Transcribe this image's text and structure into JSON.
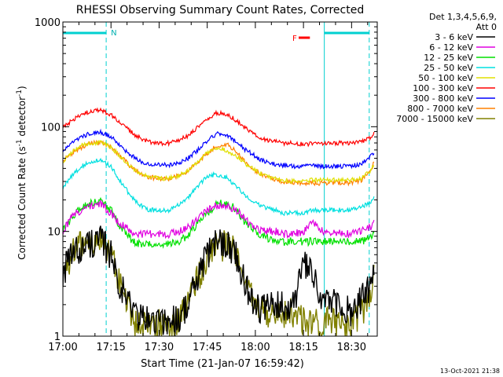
{
  "chart_data": {
    "type": "line",
    "title": "RHESSI Observing Summary Count Rates, Corrected",
    "xlabel": "Start Time (21-Jan-07 16:59:42)",
    "ylabel_parts": {
      "main": "Corrected Count Rate (s",
      "exp1": "-1",
      "mid": " detector",
      "exp2": "-1",
      "end": ")"
    },
    "x_unit": "minutes after 17:00",
    "xlim": [
      0,
      98
    ],
    "ylim": [
      1,
      1000
    ],
    "y_scale": "log",
    "x_ticks": [
      {
        "t": 0,
        "label": "17:00"
      },
      {
        "t": 15,
        "label": "17:15"
      },
      {
        "t": 30,
        "label": "17:30"
      },
      {
        "t": 45,
        "label": "17:45"
      },
      {
        "t": 60,
        "label": "18:00"
      },
      {
        "t": 75,
        "label": "18:15"
      },
      {
        "t": 90,
        "label": "18:30"
      }
    ],
    "y_ticks": [
      {
        "v": 1,
        "label": "1"
      },
      {
        "v": 10,
        "label": "10"
      },
      {
        "v": 100,
        "label": "100"
      },
      {
        "v": 1000,
        "label": "1000"
      }
    ],
    "legend_header": [
      "Det 1,3,4,5,6,9,",
      "Att 0"
    ],
    "legend_position": "right",
    "series": [
      {
        "name": "3 - 6 keV",
        "color": "#000000",
        "x": [
          0,
          3,
          6,
          9,
          12,
          15,
          18,
          21,
          24,
          27,
          30,
          33,
          36,
          39,
          42,
          45,
          48,
          51,
          54,
          57,
          60,
          63,
          66,
          69,
          72,
          75,
          78,
          81,
          84,
          87,
          90,
          93,
          96,
          97
        ],
        "values": [
          4,
          6,
          7,
          8,
          8,
          6,
          3,
          2,
          1.5,
          1.4,
          1.4,
          1.4,
          1.5,
          2,
          3.5,
          6,
          8,
          8,
          6,
          3,
          2,
          1.8,
          2,
          2,
          2,
          5,
          3.5,
          2.2,
          2,
          2,
          1.6,
          2.2,
          3,
          4
        ]
      },
      {
        "name": "6 - 12 keV",
        "color": "#e000e0",
        "x": [
          0,
          3,
          6,
          9,
          12,
          15,
          18,
          21,
          24,
          27,
          30,
          33,
          36,
          39,
          42,
          45,
          48,
          51,
          54,
          57,
          60,
          63,
          66,
          69,
          72,
          75,
          78,
          81,
          84,
          87,
          90,
          93,
          96,
          97
        ],
        "values": [
          10,
          14,
          16,
          18,
          18,
          15,
          12,
          10,
          9.5,
          9.5,
          9.5,
          9.5,
          10,
          11,
          13,
          16,
          18,
          18,
          16,
          13,
          11,
          10,
          10,
          9.5,
          9.5,
          10,
          12,
          10,
          9.5,
          9.5,
          9.5,
          10,
          11,
          12
        ]
      },
      {
        "name": "12 - 25 keV",
        "color": "#00e000",
        "x": [
          0,
          3,
          6,
          9,
          12,
          15,
          18,
          21,
          24,
          27,
          30,
          33,
          36,
          39,
          42,
          45,
          48,
          51,
          54,
          57,
          60,
          63,
          66,
          69,
          72,
          75,
          78,
          81,
          84,
          87,
          90,
          93,
          96,
          97
        ],
        "values": [
          10,
          14,
          17,
          19,
          19,
          16,
          11,
          8.5,
          7.5,
          7.5,
          7.5,
          7.5,
          8,
          9,
          12,
          15,
          18,
          19,
          16,
          12,
          10,
          9,
          8,
          8,
          8,
          8,
          8,
          8,
          8,
          8,
          8,
          8,
          9,
          10
        ]
      },
      {
        "name": "25 - 50 keV",
        "color": "#00e0e0",
        "x": [
          0,
          3,
          6,
          9,
          12,
          15,
          18,
          21,
          24,
          27,
          30,
          33,
          36,
          39,
          42,
          45,
          48,
          51,
          54,
          57,
          60,
          63,
          66,
          69,
          72,
          75,
          78,
          81,
          84,
          87,
          90,
          93,
          96,
          97
        ],
        "values": [
          26,
          35,
          42,
          47,
          47,
          42,
          30,
          22,
          18,
          16,
          16,
          16,
          18,
          21,
          27,
          34,
          35,
          33,
          27,
          22,
          19,
          17,
          16,
          15,
          15,
          15,
          16,
          16,
          16,
          16,
          16,
          17,
          19,
          21
        ]
      },
      {
        "name": "50 - 100 keV",
        "color": "#e0e000",
        "x": [
          0,
          3,
          6,
          9,
          12,
          15,
          18,
          21,
          24,
          27,
          30,
          33,
          36,
          39,
          42,
          45,
          48,
          51,
          54,
          57,
          60,
          63,
          66,
          69,
          72,
          75,
          78,
          81,
          84,
          87,
          90,
          93,
          96,
          97
        ],
        "values": [
          46,
          58,
          66,
          70,
          70,
          64,
          52,
          42,
          36,
          33,
          32,
          32,
          34,
          38,
          46,
          56,
          62,
          60,
          52,
          44,
          38,
          34,
          32,
          31,
          30,
          30,
          31,
          31,
          31,
          31,
          31,
          32,
          38,
          44
        ]
      },
      {
        "name": "100 - 300 keV",
        "color": "#ff0000",
        "x": [
          0,
          3,
          6,
          9,
          12,
          15,
          18,
          21,
          24,
          27,
          30,
          33,
          36,
          39,
          42,
          45,
          48,
          51,
          54,
          57,
          60,
          63,
          66,
          69,
          72,
          75,
          78,
          81,
          84,
          87,
          90,
          93,
          96,
          97
        ],
        "values": [
          98,
          115,
          130,
          142,
          142,
          130,
          110,
          90,
          78,
          72,
          70,
          70,
          74,
          82,
          98,
          118,
          135,
          132,
          115,
          96,
          84,
          76,
          72,
          70,
          69,
          68,
          69,
          69,
          69,
          70,
          70,
          72,
          80,
          88
        ]
      },
      {
        "name": "300 - 800 keV",
        "color": "#0000ff",
        "x": [
          0,
          3,
          6,
          9,
          12,
          15,
          18,
          21,
          24,
          27,
          30,
          33,
          36,
          39,
          42,
          45,
          48,
          51,
          54,
          57,
          60,
          63,
          66,
          69,
          72,
          75,
          78,
          81,
          84,
          87,
          90,
          93,
          96,
          97
        ],
        "values": [
          58,
          70,
          80,
          88,
          88,
          80,
          66,
          54,
          47,
          44,
          43,
          43,
          45,
          50,
          60,
          74,
          86,
          84,
          72,
          60,
          52,
          46,
          44,
          43,
          42,
          42,
          42,
          42,
          42,
          42,
          42,
          44,
          52,
          58
        ]
      },
      {
        "name": "800 - 7000 keV",
        "color": "#ff8000",
        "x": [
          0,
          3,
          6,
          9,
          12,
          15,
          18,
          21,
          24,
          27,
          30,
          33,
          36,
          39,
          42,
          45,
          48,
          51,
          54,
          57,
          60,
          63,
          66,
          69,
          72,
          75,
          78,
          81,
          84,
          87,
          90,
          93,
          96,
          97
        ],
        "values": [
          48,
          56,
          64,
          70,
          70,
          64,
          52,
          42,
          36,
          33,
          32,
          32,
          34,
          38,
          46,
          56,
          66,
          68,
          58,
          46,
          38,
          34,
          31,
          30,
          29,
          29,
          29,
          29,
          29,
          29,
          29,
          31,
          38,
          46
        ]
      },
      {
        "name": "7000 - 15000 keV",
        "color": "#808000",
        "x": [
          0,
          3,
          6,
          9,
          12,
          15,
          18,
          21,
          24,
          27,
          30,
          33,
          36,
          39,
          42,
          45,
          48,
          51,
          54,
          57,
          60,
          63,
          66,
          69,
          72,
          75,
          78,
          81,
          84,
          87,
          90,
          93,
          96,
          97
        ],
        "values": [
          3.5,
          6,
          7.5,
          8,
          8,
          6,
          3,
          1.6,
          1.2,
          1.3,
          1.3,
          1.2,
          1.4,
          2,
          3.5,
          5.5,
          7,
          7.5,
          6,
          3.5,
          2,
          1.7,
          1.6,
          1.7,
          1.6,
          1.4,
          1.3,
          1.3,
          1.4,
          1.3,
          1.4,
          1.6,
          2.8,
          3.5
        ]
      }
    ],
    "annotations": {
      "vertical_lines_solid": [
        0,
        81.5
      ],
      "vertical_lines_dashed": [
        13.5,
        95.5
      ],
      "coverage_bars": [
        {
          "from": 0,
          "to": 13.5
        },
        {
          "from": 81.5,
          "to": 95.5
        }
      ],
      "night_label": "N",
      "flare_label": "F",
      "flare_bar": {
        "from": 73.5,
        "to": 77
      }
    },
    "timestamp": "13-Oct-2021 21:38",
    "grid": false
  }
}
